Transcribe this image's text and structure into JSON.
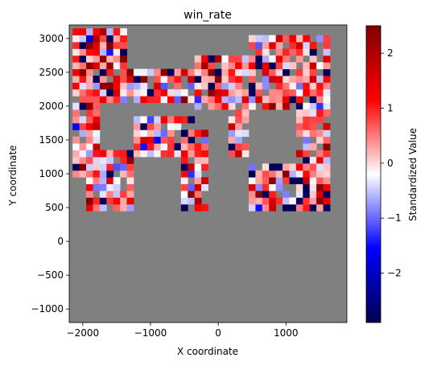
{
  "chart_data": {
    "type": "heatmap",
    "title": "win_rate",
    "xlabel": "X coordinate",
    "ylabel": "Y coordinate",
    "xlim": [
      -2200,
      1900
    ],
    "ylim": [
      -1200,
      3200
    ],
    "xticks": [
      -2000,
      -1000,
      0,
      1000
    ],
    "xtick_labels": [
      "−2000",
      "−1000",
      "0",
      "1000"
    ],
    "yticks": [
      -1000,
      -500,
      0,
      500,
      1000,
      1500,
      2000,
      2500,
      3000
    ],
    "ytick_labels": [
      "−1000",
      "−500",
      "0",
      "500",
      "1000",
      "1500",
      "2000",
      "2500",
      "3000"
    ],
    "background_color": "#808080",
    "colormap": "seismic",
    "grid": false,
    "cell_size": 100,
    "colorbar": {
      "label": "Standardized Value",
      "vmin": -2.9,
      "vmax": 2.5,
      "ticks": [
        -2,
        -1,
        0,
        1,
        2
      ],
      "tick_labels": [
        "−2",
        "−1",
        "0",
        "1",
        "2"
      ]
    },
    "regions": [
      {
        "name": "upper-left block",
        "x": [
          -2150,
          -1350
        ],
        "y": [
          2050,
          3150
        ]
      },
      {
        "name": "upper middle band",
        "x": [
          -1350,
          -350
        ],
        "y": [
          2050,
          2550
        ]
      },
      {
        "name": "upper middle-right band",
        "x": [
          -350,
          450
        ],
        "y": [
          1950,
          2750
        ]
      },
      {
        "name": "upper-right block",
        "x": [
          450,
          1650
        ],
        "y": [
          1950,
          3050
        ]
      },
      {
        "name": "left column",
        "x": [
          -2150,
          -1750
        ],
        "y": [
          950,
          2050
        ]
      },
      {
        "name": "left lower block",
        "x": [
          -1950,
          -1250
        ],
        "y": [
          450,
          1350
        ]
      },
      {
        "name": "middle strip",
        "x": [
          -1250,
          -350
        ],
        "y": [
          1250,
          1850
        ]
      },
      {
        "name": "center column",
        "x": [
          -550,
          -150
        ],
        "y": [
          450,
          1650
        ]
      },
      {
        "name": "center right column",
        "x": [
          150,
          450
        ],
        "y": [
          1250,
          1950
        ]
      },
      {
        "name": "right column",
        "x": [
          1150,
          1650
        ],
        "y": [
          1050,
          1950
        ]
      },
      {
        "name": "lower-right block",
        "x": [
          450,
          1650
        ],
        "y": [
          450,
          1150
        ]
      }
    ]
  }
}
